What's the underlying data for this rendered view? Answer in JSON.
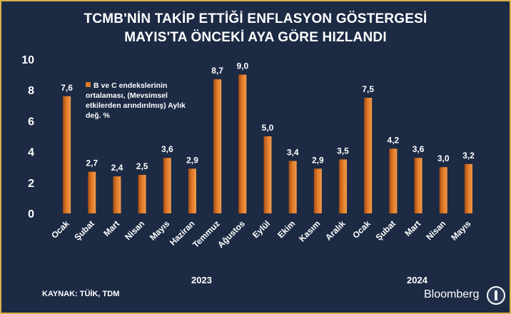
{
  "title_line1": "TCMB'NİN TAKİP ETTİĞİ ENFLASYON GÖSTERGESİ",
  "title_line2": "MAYIS'TA ÖNCEKİ AYA GÖRE HIZLANDI",
  "legend_text": "B ve C endekslerinin ortalaması, (Mevsimsel etkilerden arındırılmış) Aylık değ.  %",
  "year_2023": "2023",
  "year_2024": "2024",
  "source": "KAYNAK: TÜİK, TDM",
  "brand": "Bloomberg",
  "colors": {
    "background": "#1c2a44",
    "border": "#d8b24a",
    "bar": "#e07a28",
    "text": "#ffffff"
  },
  "chart_data": {
    "type": "bar",
    "categories": [
      "Ocak",
      "Şubat",
      "Mart",
      "Nisan",
      "Mayıs",
      "Haziran",
      "Temmuz",
      "Ağustos",
      "Eylül",
      "Ekim",
      "Kasım",
      "Aralık",
      "Ocak",
      "Şubat",
      "Mart",
      "Nisan",
      "Mayıs"
    ],
    "value_labels": [
      "7,6",
      "2,7",
      "2,4",
      "2,5",
      "3,6",
      "2,9",
      "8,7",
      "9,0",
      "5,0",
      "3,4",
      "2,9",
      "3,5",
      "7,5",
      "4,2",
      "3,6",
      "3,0",
      "3,2"
    ],
    "series": [
      {
        "name": "B ve C endekslerinin ortalaması, (Mevsimsel etkilerden arındırılmış) Aylık değ.  %",
        "values": [
          7.6,
          2.7,
          2.4,
          2.5,
          3.6,
          2.9,
          8.7,
          9.0,
          5.0,
          3.4,
          2.9,
          3.5,
          7.5,
          4.2,
          3.6,
          3.0,
          3.2
        ]
      }
    ],
    "ylim": [
      0,
      10
    ],
    "yticks": [
      0,
      2,
      4,
      6,
      8,
      10
    ],
    "xlabel": "",
    "ylabel": "",
    "grid": false,
    "legend": "top-left"
  }
}
